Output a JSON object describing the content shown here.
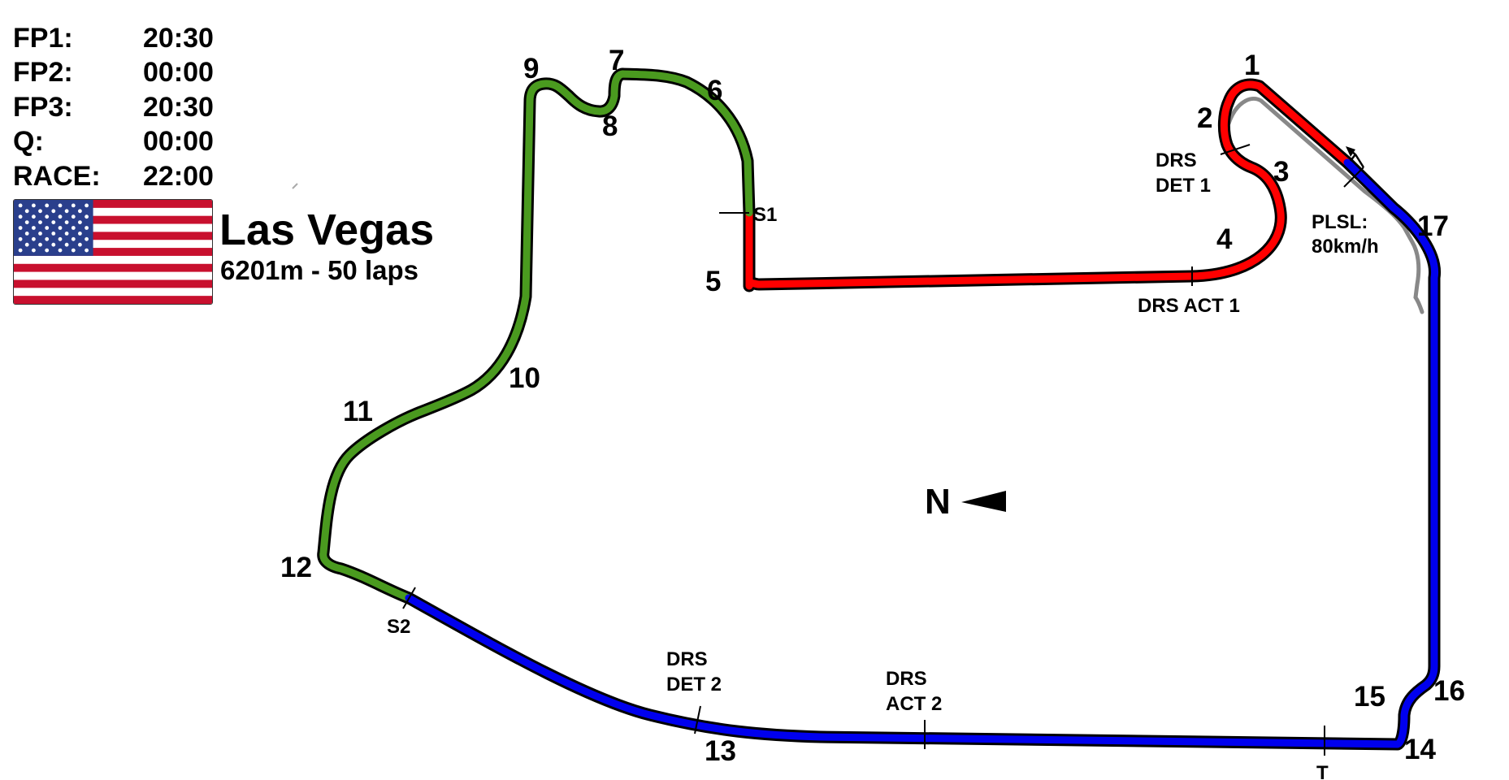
{
  "sessions": [
    {
      "label": "FP1:",
      "time": "20:30"
    },
    {
      "label": "FP2:",
      "time": "00:00"
    },
    {
      "label": "FP3:",
      "time": "20:30"
    },
    {
      "label": "Q:",
      "time": "00:00"
    },
    {
      "label": "RACE:",
      "time": "22:00"
    }
  ],
  "track": {
    "name": "Las Vegas",
    "info": "6201m - 50 laps"
  },
  "flag": {
    "icon": "usa-flag-icon",
    "red": "#c8102e",
    "white": "#ffffff",
    "blue": "#2a3f8c"
  },
  "sectors": {
    "sector1_color": "#ff0000",
    "sector2_color": "#4a9a1f",
    "sector3_color": "#0000ee",
    "pitlane_color": "#888888"
  },
  "corners": [
    "1",
    "2",
    "3",
    "4",
    "5",
    "6",
    "7",
    "8",
    "9",
    "10",
    "11",
    "12",
    "13",
    "14",
    "15",
    "16",
    "17"
  ],
  "markers": {
    "s1": "S1",
    "s2": "S2",
    "t": "T",
    "drs_det1": [
      "DRS",
      "DET 1"
    ],
    "drs_act1": "DRS ACT 1",
    "drs_det2": [
      "DRS",
      "DET 2"
    ],
    "drs_act2": [
      "DRS",
      "ACT 2"
    ],
    "pit_limit": [
      "PLSL:",
      "80km/h"
    ]
  },
  "compass": {
    "label": "N",
    "icon": "north-arrow-icon"
  }
}
